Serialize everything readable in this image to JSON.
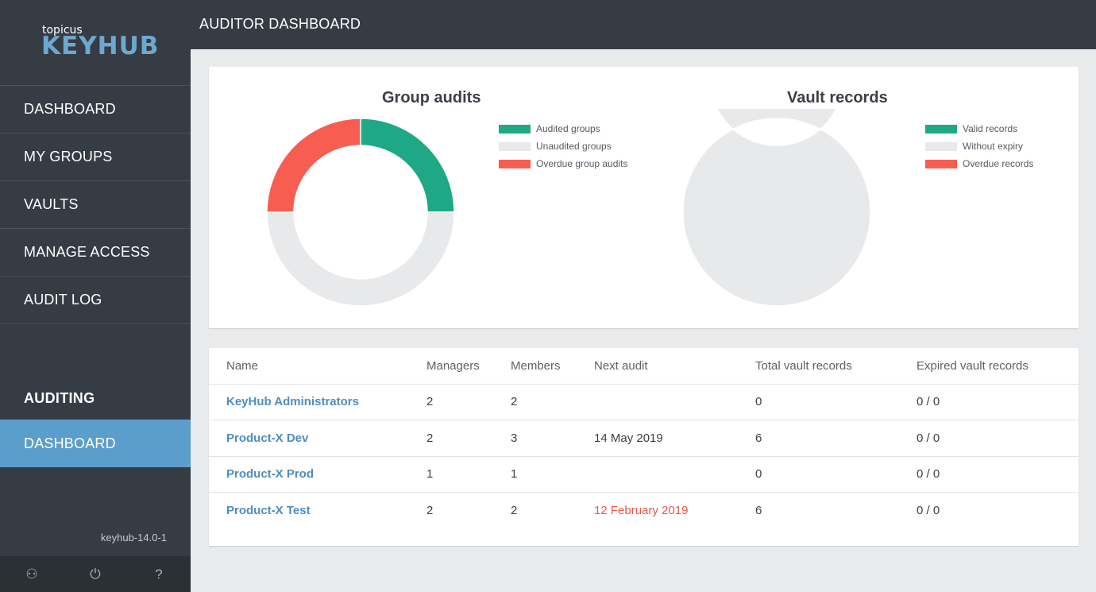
{
  "app": {
    "logo_small": "topicus",
    "logo_big": "KEYHUB",
    "version": "keyhub-14.0-1"
  },
  "header": {
    "title": "AUDITOR DASHBOARD"
  },
  "sidebar": {
    "items": [
      {
        "label": "DASHBOARD"
      },
      {
        "label": "MY GROUPS"
      },
      {
        "label": "VAULTS"
      },
      {
        "label": "MANAGE ACCESS"
      },
      {
        "label": "AUDIT LOG"
      }
    ],
    "section_title": "AUDITING",
    "auditing_items": [
      {
        "label": "DASHBOARD",
        "active": true
      }
    ],
    "footer_icons": [
      "user-icon",
      "power-icon",
      "help-icon"
    ],
    "footer_glyphs": {
      "user": "⚇",
      "power": "⏻",
      "help": "?"
    }
  },
  "colors": {
    "green": "#1ea886",
    "grey": "#e8e9ea",
    "red": "#f85d52",
    "accent": "#5b9ecb"
  },
  "chart_data": [
    {
      "type": "pie",
      "title": "Group audits",
      "labels": [
        "Audited groups",
        "Unaudited groups",
        "Overdue group audits"
      ],
      "values": [
        1,
        2,
        1
      ],
      "colors": [
        "#1ea886",
        "#e8e9ea",
        "#f85d52"
      ]
    },
    {
      "type": "pie",
      "title": "Vault records",
      "labels": [
        "Valid records",
        "Without expiry",
        "Overdue records"
      ],
      "values": [
        0,
        12,
        0
      ],
      "colors": [
        "#1ea886",
        "#e8e9ea",
        "#f85d52"
      ]
    }
  ],
  "table": {
    "headers": [
      "Name",
      "Managers",
      "Members",
      "Next audit",
      "Total vault records",
      "Expired vault records"
    ],
    "rows": [
      {
        "name": "KeyHub Administrators",
        "managers": "2",
        "members": "2",
        "next_audit": "",
        "total_records": "0",
        "expired_records": "0 / 0",
        "overdue": false
      },
      {
        "name": "Product-X Dev",
        "managers": "2",
        "members": "3",
        "next_audit": "14 May 2019",
        "total_records": "6",
        "expired_records": "0 / 0",
        "overdue": false
      },
      {
        "name": "Product-X Prod",
        "managers": "1",
        "members": "1",
        "next_audit": "",
        "total_records": "0",
        "expired_records": "0 / 0",
        "overdue": false
      },
      {
        "name": "Product-X Test",
        "managers": "2",
        "members": "2",
        "next_audit": "12 February 2019",
        "total_records": "6",
        "expired_records": "0 / 0",
        "overdue": true
      }
    ]
  }
}
